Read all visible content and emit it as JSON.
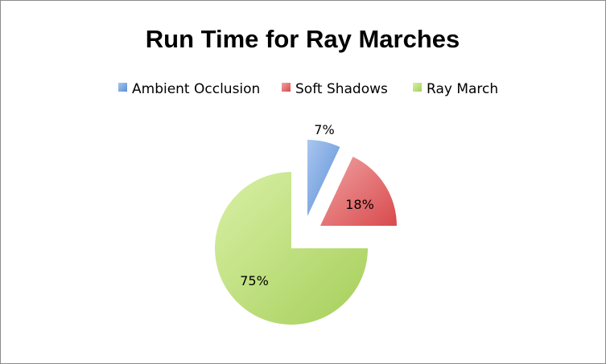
{
  "chart_data": {
    "type": "pie",
    "title": "Run Time for Ray Marches",
    "legend_position": "top",
    "exploded": true,
    "slices": [
      {
        "name": "Ambient Occlusion",
        "value": 7,
        "label": "7%",
        "color": "#5b8fd6",
        "color_light": "#a9c6ef"
      },
      {
        "name": "Soft Shadows",
        "value": 18,
        "label": "18%",
        "color": "#d94a4d",
        "color_light": "#f0a2a2"
      },
      {
        "name": "Ray March",
        "value": 75,
        "label": "75%",
        "color": "#a6cf5a",
        "color_light": "#d9f0a6"
      }
    ]
  }
}
